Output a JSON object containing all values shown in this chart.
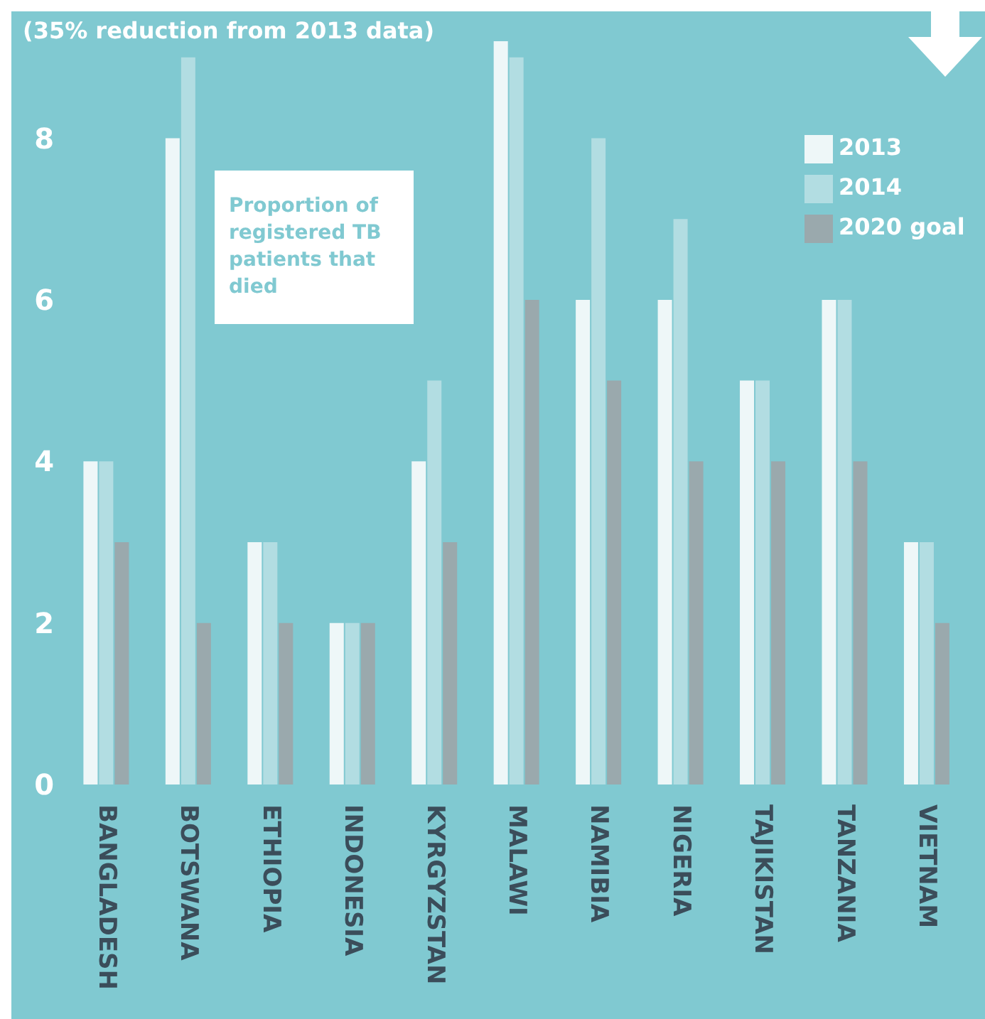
{
  "chart_data": {
    "type": "bar",
    "title": "(35% reduction from 2013 data)",
    "annotations": [
      "Proportion of registered TB patients that died"
    ],
    "categories": [
      "BANGLADESH",
      "BOTSWANA",
      "ETHIOPIA",
      "INDONESIA",
      "KYRGYZSTAN",
      "MALAWI",
      "NAMIBIA",
      "NIGERIA",
      "TAJIKISTAN",
      "TANZANIA",
      "VIETNAM"
    ],
    "series": [
      {
        "name": "2013",
        "color": "#eef7f8",
        "values": [
          4,
          8,
          3,
          2,
          4,
          9.2,
          6,
          6,
          5,
          6,
          3
        ]
      },
      {
        "name": "2014",
        "color": "#b2dde2",
        "values": [
          4,
          9,
          3,
          2,
          5,
          9,
          8,
          7,
          5,
          6,
          3
        ]
      },
      {
        "name": "2020 goal",
        "color": "#9aa9ad",
        "values": [
          3,
          2,
          2,
          2,
          3,
          6,
          5,
          4,
          4,
          4,
          2
        ]
      }
    ],
    "ylim": [
      0,
      9.5
    ],
    "yticks": [
      0,
      2,
      4,
      6,
      8
    ],
    "grid": false,
    "legend": "top right"
  }
}
